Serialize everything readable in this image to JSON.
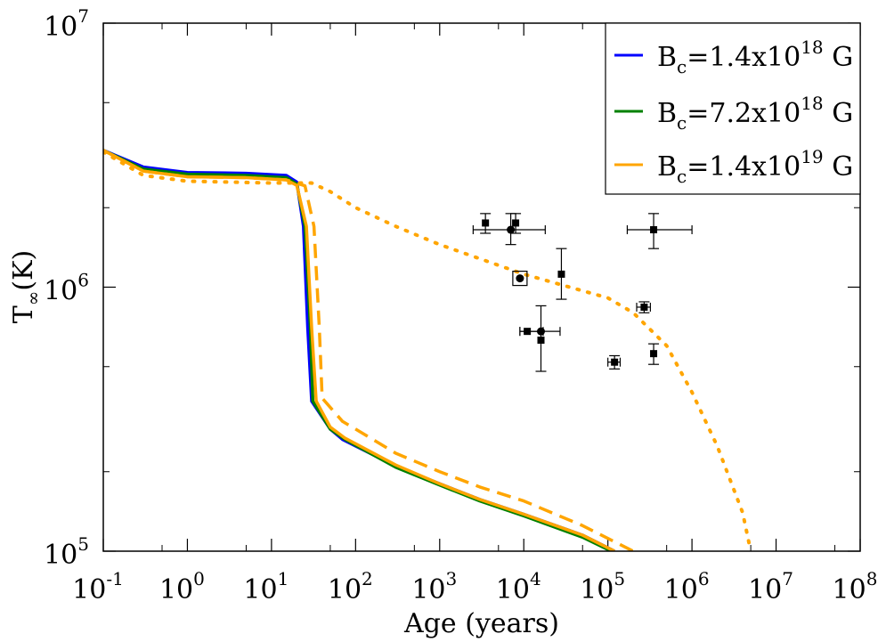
{
  "chart_data": {
    "type": "line",
    "x_scale": "log",
    "y_scale": "log",
    "xlabel": "Age (years)",
    "ylabel_main": "T",
    "ylabel_sub": "∞",
    "ylabel_unit": "(K)",
    "xlim": [
      0.1,
      100000000
    ],
    "ylim": [
      100000,
      10000000
    ],
    "x_ticks": [
      {
        "value": 0.1,
        "base": "10",
        "exp": "-1"
      },
      {
        "value": 1,
        "base": "10",
        "exp": "0"
      },
      {
        "value": 10,
        "base": "10",
        "exp": "1"
      },
      {
        "value": 100,
        "base": "10",
        "exp": "2"
      },
      {
        "value": 1000,
        "base": "10",
        "exp": "3"
      },
      {
        "value": 10000,
        "base": "10",
        "exp": "4"
      },
      {
        "value": 100000,
        "base": "10",
        "exp": "5"
      },
      {
        "value": 1000000,
        "base": "10",
        "exp": "6"
      },
      {
        "value": 10000000,
        "base": "10",
        "exp": "7"
      },
      {
        "value": 100000000,
        "base": "10",
        "exp": "8"
      }
    ],
    "y_ticks": [
      {
        "value": 100000,
        "base": "10",
        "exp": "5"
      },
      {
        "value": 1000000,
        "base": "10",
        "exp": "6"
      },
      {
        "value": 10000000,
        "base": "10",
        "exp": "7"
      }
    ],
    "legend": [
      {
        "prefix": "B",
        "sub": "c",
        "mid": "=1.4x10",
        "sup": "18",
        "unit": " G",
        "color": "#0000ff"
      },
      {
        "prefix": "B",
        "sub": "c",
        "mid": "=7.2x10",
        "sup": "18",
        "unit": " G",
        "color": "#008000"
      },
      {
        "prefix": "B",
        "sub": "c",
        "mid": "=1.4x10",
        "sup": "19",
        "unit": " G",
        "color": "#ffa500"
      }
    ],
    "legend_position": "top-right",
    "series": [
      {
        "name": "B_c=1.4x10^18 G",
        "color": "#0000ff",
        "style": "solid",
        "points": [
          [
            0.1,
            3300000
          ],
          [
            0.3,
            2850000
          ],
          [
            1,
            2720000
          ],
          [
            5,
            2700000
          ],
          [
            15,
            2650000
          ],
          [
            20,
            2500000
          ],
          [
            24,
            1700000
          ],
          [
            27,
            700000
          ],
          [
            30,
            370000
          ],
          [
            50,
            290000
          ],
          [
            70,
            265000
          ],
          [
            300,
            210000
          ],
          [
            1000,
            180000
          ],
          [
            3000,
            157000
          ],
          [
            10000,
            138000
          ],
          [
            50000,
            115000
          ],
          [
            120000,
            100000
          ]
        ]
      },
      {
        "name": "B_c=7.2x10^18 G",
        "color": "#008000",
        "style": "solid",
        "points": [
          [
            0.1,
            3300000
          ],
          [
            0.3,
            2800000
          ],
          [
            1,
            2680000
          ],
          [
            5,
            2650000
          ],
          [
            15,
            2600000
          ],
          [
            20,
            2460000
          ],
          [
            25,
            1700000
          ],
          [
            29,
            700000
          ],
          [
            31,
            370000
          ],
          [
            50,
            290000
          ],
          [
            75,
            265000
          ],
          [
            300,
            208000
          ],
          [
            1000,
            178000
          ],
          [
            3000,
            155000
          ],
          [
            10000,
            136000
          ],
          [
            50000,
            113000
          ],
          [
            110000,
            100000
          ]
        ]
      },
      {
        "name": "B_c=1.4x10^19 G",
        "color": "#ffa500",
        "style": "solid",
        "points": [
          [
            0.1,
            3300000
          ],
          [
            0.3,
            2750000
          ],
          [
            1,
            2620000
          ],
          [
            5,
            2600000
          ],
          [
            15,
            2550000
          ],
          [
            20,
            2430000
          ],
          [
            26,
            1700000
          ],
          [
            30,
            700000
          ],
          [
            34,
            370000
          ],
          [
            50,
            295000
          ],
          [
            75,
            268000
          ],
          [
            300,
            212000
          ],
          [
            1000,
            180000
          ],
          [
            3000,
            157000
          ],
          [
            10000,
            138000
          ],
          [
            50000,
            115000
          ],
          [
            120000,
            100000
          ]
        ]
      },
      {
        "name": "B_c=1.4x10^19 G (dashed)",
        "color": "#ffa500",
        "style": "dashed",
        "points": [
          [
            0.1,
            3300000
          ],
          [
            0.3,
            2750000
          ],
          [
            1,
            2620000
          ],
          [
            5,
            2600000
          ],
          [
            15,
            2550000
          ],
          [
            25,
            2420000
          ],
          [
            32,
            1700000
          ],
          [
            37,
            700000
          ],
          [
            40,
            380000
          ],
          [
            70,
            310000
          ],
          [
            100,
            290000
          ],
          [
            300,
            235000
          ],
          [
            1000,
            200000
          ],
          [
            3000,
            175000
          ],
          [
            10000,
            155000
          ],
          [
            50000,
            125000
          ],
          [
            200000,
            100000
          ]
        ]
      },
      {
        "name": "B_c=1.4x10^19 G (dotted)",
        "color": "#ffa500",
        "style": "dotted",
        "points": [
          [
            0.1,
            3250000
          ],
          [
            0.3,
            2650000
          ],
          [
            1,
            2520000
          ],
          [
            10,
            2480000
          ],
          [
            30,
            2480000
          ],
          [
            50,
            2300000
          ],
          [
            100,
            2000000
          ],
          [
            300,
            1700000
          ],
          [
            1000,
            1450000
          ],
          [
            10000,
            1120000
          ],
          [
            100000,
            910000
          ],
          [
            200000,
            800000
          ],
          [
            500000,
            600000
          ],
          [
            1000000,
            400000
          ],
          [
            2000000,
            250000
          ],
          [
            4000000,
            140000
          ],
          [
            5000000,
            100000
          ]
        ]
      }
    ],
    "observations": [
      {
        "marker": "square",
        "x": 3500,
        "y": 1750000,
        "xerr": [
          3500,
          3500
        ],
        "yerr": [
          1600000,
          1900000
        ]
      },
      {
        "marker": "square",
        "x": 8000,
        "y": 1750000,
        "xerr": [
          8000,
          8000
        ],
        "yerr": [
          1600000,
          1900000
        ]
      },
      {
        "marker": "circle",
        "x": 7000,
        "y": 1650000,
        "xerr": [
          2500,
          18000
        ],
        "yerr": [
          1450000,
          1900000
        ]
      },
      {
        "marker": "square",
        "x": 350000,
        "y": 1650000,
        "xerr": [
          170000,
          1000000
        ],
        "yerr": [
          1400000,
          1900000
        ]
      },
      {
        "marker": "square",
        "x": 28000,
        "y": 1120000,
        "xerr": [
          28000,
          28000
        ],
        "yerr": [
          900000,
          1400000
        ]
      },
      {
        "marker": "circle-boxed",
        "x": 9000,
        "y": 1080000,
        "xerr": [
          9000,
          9000
        ],
        "yerr": [
          1080000,
          1080000
        ]
      },
      {
        "marker": "square",
        "x": 270000,
        "y": 840000,
        "xerr": [
          220000,
          320000
        ],
        "yerr": [
          800000,
          880000
        ]
      },
      {
        "marker": "square",
        "x": 11000,
        "y": 680000,
        "xerr": [
          9000,
          17000
        ],
        "yerr": [
          680000,
          680000
        ]
      },
      {
        "marker": "circle",
        "x": 16000,
        "y": 680000,
        "xerr": [
          9000,
          27000
        ],
        "yerr": [
          680000,
          680000
        ]
      },
      {
        "marker": "square",
        "x": 16000,
        "y": 630000,
        "xerr": [
          16000,
          16000
        ],
        "yerr": [
          480000,
          850000
        ]
      },
      {
        "marker": "square",
        "x": 350000,
        "y": 560000,
        "xerr": [
          350000,
          350000
        ],
        "yerr": [
          510000,
          610000
        ]
      },
      {
        "marker": "square",
        "x": 120000,
        "y": 520000,
        "xerr": [
          100000,
          140000
        ],
        "yerr": [
          490000,
          550000
        ]
      }
    ]
  }
}
